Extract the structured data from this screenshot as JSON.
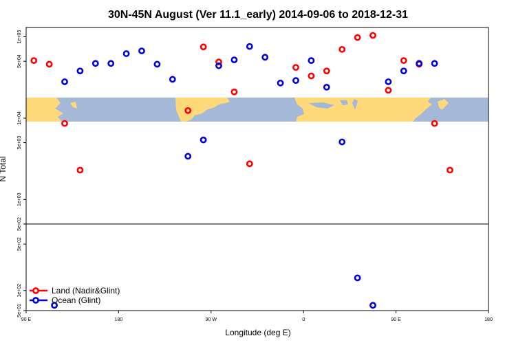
{
  "chart_data": {
    "type": "scatter",
    "title": "30N-45N August (Ver 11.1_early)   2014-09-06 to 2018-12-31",
    "xlabel": "Longitude (deg E)",
    "ylabel": "N Total",
    "x_ticks": [
      {
        "value": 90,
        "label": "90 E"
      },
      {
        "value": 180,
        "label": "180"
      },
      {
        "value": 270,
        "label": "90 W"
      },
      {
        "value": 360,
        "label": "0"
      },
      {
        "value": 450,
        "label": "90 E"
      },
      {
        "value": 540,
        "label": "180"
      }
    ],
    "xlim": [
      90,
      540
    ],
    "upper_panel": {
      "scale": "log",
      "ylim": [
        500,
        130000
      ],
      "y_ticks": [
        {
          "value": 500,
          "label": "5e+02"
        },
        {
          "value": 1000,
          "label": "1e+03"
        },
        {
          "value": 5000,
          "label": "5e+03"
        },
        {
          "value": 10000,
          "label": "1e+04"
        },
        {
          "value": 50000,
          "label": "5e+04"
        },
        {
          "value": 100000,
          "label": "1e+05"
        }
      ]
    },
    "lower_panel": {
      "scale": "log",
      "ylim": [
        50,
        1000
      ],
      "y_ticks": [
        {
          "value": 50,
          "label": "5e+01"
        },
        {
          "value": 100,
          "label": "1e+02"
        },
        {
          "value": 500,
          "label": "5e+02"
        }
      ]
    },
    "map_band": {
      "ocean_color": "#a4b8d8",
      "land_color": "#ffd97a"
    },
    "legend": {
      "position": "bottom-left"
    },
    "series": [
      {
        "name": "Land (Nadir&Glint)",
        "color": "#ff0000",
        "points": [
          {
            "x": 97.5,
            "y": 51000,
            "panel": "upper"
          },
          {
            "x": 112.5,
            "y": 46000,
            "panel": "upper"
          },
          {
            "x": 127.5,
            "y": 8600,
            "panel": "upper"
          },
          {
            "x": 142.5,
            "y": 2300,
            "panel": "upper"
          },
          {
            "x": 247.5,
            "y": 12400,
            "panel": "upper"
          },
          {
            "x": 262.5,
            "y": 75000,
            "panel": "upper"
          },
          {
            "x": 277.5,
            "y": 49000,
            "panel": "upper"
          },
          {
            "x": 292.5,
            "y": 21000,
            "panel": "upper"
          },
          {
            "x": 307.5,
            "y": 2750,
            "panel": "upper"
          },
          {
            "x": 352.5,
            "y": 42000,
            "panel": "upper"
          },
          {
            "x": 367.5,
            "y": 33000,
            "panel": "upper"
          },
          {
            "x": 382.5,
            "y": 38000,
            "panel": "upper"
          },
          {
            "x": 397.5,
            "y": 70000,
            "panel": "upper"
          },
          {
            "x": 412.5,
            "y": 98000,
            "panel": "upper"
          },
          {
            "x": 427.5,
            "y": 104000,
            "panel": "upper"
          },
          {
            "x": 442.5,
            "y": 22000,
            "panel": "upper"
          },
          {
            "x": 457.5,
            "y": 51000,
            "panel": "upper"
          },
          {
            "x": 472.5,
            "y": 46000,
            "panel": "upper"
          },
          {
            "x": 487.5,
            "y": 8600,
            "panel": "upper"
          },
          {
            "x": 502.5,
            "y": 2300,
            "panel": "upper"
          }
        ]
      },
      {
        "name": "Ocean (Glint)",
        "color": "#0000dd",
        "points": [
          {
            "x": 117.5,
            "y": 60,
            "panel": "lower"
          },
          {
            "x": 127.5,
            "y": 28000,
            "panel": "upper"
          },
          {
            "x": 142.5,
            "y": 38000,
            "panel": "upper"
          },
          {
            "x": 157.5,
            "y": 47000,
            "panel": "upper"
          },
          {
            "x": 172.5,
            "y": 47000,
            "panel": "upper"
          },
          {
            "x": 187.5,
            "y": 62000,
            "panel": "upper"
          },
          {
            "x": 202.5,
            "y": 67000,
            "panel": "upper"
          },
          {
            "x": 217.5,
            "y": 46000,
            "panel": "upper"
          },
          {
            "x": 232.5,
            "y": 30000,
            "panel": "upper"
          },
          {
            "x": 247.5,
            "y": 3400,
            "panel": "upper"
          },
          {
            "x": 262.5,
            "y": 5400,
            "panel": "upper"
          },
          {
            "x": 277.5,
            "y": 44000,
            "panel": "upper"
          },
          {
            "x": 292.5,
            "y": 52000,
            "panel": "upper"
          },
          {
            "x": 307.5,
            "y": 76000,
            "panel": "upper"
          },
          {
            "x": 322.5,
            "y": 56000,
            "panel": "upper"
          },
          {
            "x": 337.5,
            "y": 27000,
            "panel": "upper"
          },
          {
            "x": 352.5,
            "y": 29000,
            "panel": "upper"
          },
          {
            "x": 367.5,
            "y": 51000,
            "panel": "upper"
          },
          {
            "x": 382.5,
            "y": 24000,
            "panel": "upper"
          },
          {
            "x": 397.5,
            "y": 5100,
            "panel": "upper"
          },
          {
            "x": 412.5,
            "y": 155,
            "panel": "lower"
          },
          {
            "x": 427.5,
            "y": 60,
            "panel": "lower"
          },
          {
            "x": 442.5,
            "y": 28000,
            "panel": "upper"
          },
          {
            "x": 457.5,
            "y": 38000,
            "panel": "upper"
          },
          {
            "x": 472.5,
            "y": 47000,
            "panel": "upper"
          },
          {
            "x": 487.5,
            "y": 47000,
            "panel": "upper"
          }
        ]
      }
    ]
  }
}
